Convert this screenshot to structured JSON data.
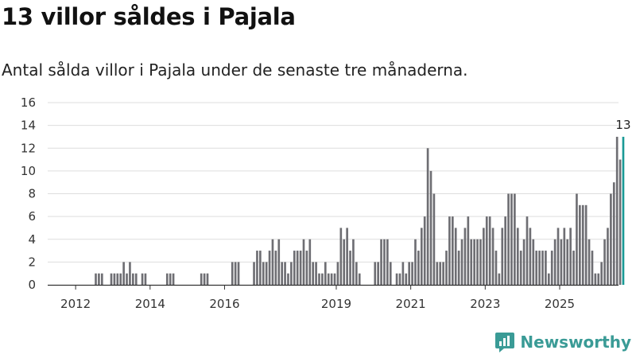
{
  "header": {
    "title": "13 villor såldes i Pajala",
    "subtitle": "Antal sålda villor i Pajala under de senaste tre månaderna."
  },
  "brand": {
    "name": "Newsworthy",
    "color": "#3a9b96"
  },
  "colors": {
    "bar": "#6e6e73",
    "highlight": "#1a9a96",
    "grid": "#dddddd",
    "axis": "#333333"
  },
  "chart_data": {
    "type": "bar",
    "title": "13 villor såldes i Pajala",
    "subtitle": "Antal sålda villor i Pajala under de senaste tre månaderna.",
    "xlabel": "",
    "ylabel": "",
    "ylim": [
      0,
      16
    ],
    "yticks": [
      0,
      2,
      4,
      6,
      8,
      10,
      12,
      14,
      16
    ],
    "xlim": [
      2011.25,
      2026.58
    ],
    "xticks": [
      {
        "label": "2012",
        "value": 2012
      },
      {
        "label": "2014",
        "value": 2014
      },
      {
        "label": "2016",
        "value": 2016
      },
      {
        "label": "2019",
        "value": 2019
      },
      {
        "label": "2021",
        "value": 2021
      },
      {
        "label": "2023",
        "value": 2023
      },
      {
        "label": "2025",
        "value": 2025
      }
    ],
    "start": 2011.25,
    "step": 0.08333,
    "values": [
      0,
      0,
      0,
      0,
      0,
      0,
      0,
      0,
      0,
      0,
      0,
      0,
      0,
      0,
      0,
      1,
      1,
      1,
      0,
      0,
      1,
      1,
      1,
      1,
      2,
      1,
      2,
      1,
      1,
      0,
      1,
      1,
      0,
      0,
      0,
      0,
      0,
      0,
      1,
      1,
      1,
      0,
      0,
      0,
      0,
      0,
      0,
      0,
      0,
      1,
      1,
      1,
      0,
      0,
      0,
      0,
      0,
      0,
      0,
      2,
      2,
      2,
      0,
      0,
      0,
      0,
      2,
      3,
      3,
      2,
      2,
      3,
      4,
      3,
      4,
      2,
      2,
      1,
      2,
      3,
      3,
      3,
      4,
      3,
      4,
      2,
      2,
      1,
      1,
      2,
      1,
      1,
      1,
      2,
      5,
      4,
      5,
      3,
      4,
      2,
      1,
      0,
      0,
      0,
      0,
      2,
      2,
      4,
      4,
      4,
      2,
      0,
      1,
      1,
      2,
      1,
      2,
      2,
      4,
      3,
      5,
      6,
      12,
      10,
      8,
      2,
      2,
      2,
      3,
      6,
      6,
      5,
      3,
      4,
      5,
      6,
      4,
      4,
      4,
      4,
      5,
      6,
      6,
      5,
      3,
      1,
      5,
      6,
      8,
      8,
      8,
      5,
      3,
      4,
      6,
      5,
      4,
      3,
      3,
      3,
      3,
      1,
      3,
      4,
      5,
      4,
      5,
      4,
      5,
      3,
      8,
      7,
      7,
      7,
      4,
      3,
      1,
      1,
      2,
      4,
      5,
      8,
      9,
      13,
      11,
      13
    ],
    "highlight_index": 185,
    "highlight_label": "13"
  }
}
